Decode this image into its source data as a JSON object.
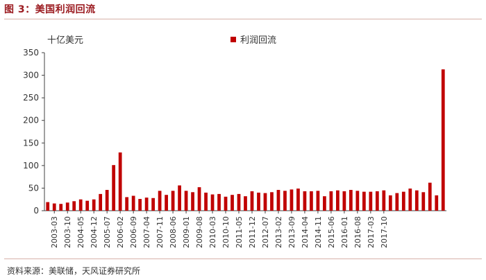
{
  "figure": {
    "title": "图 3：美国利润回流",
    "source": "资料来源：美联储，天风证券研究所"
  },
  "colors": {
    "bar": "#c00000",
    "title": "#9b1b20",
    "rule": "#d6b0a8",
    "axis": "#404040"
  },
  "chart_data": {
    "type": "bar",
    "title": "",
    "ylabel": "十亿美元",
    "xlabel": "",
    "ylim": [
      0,
      350
    ],
    "yticks": [
      0,
      50,
      100,
      150,
      200,
      250,
      300,
      350
    ],
    "grid": false,
    "legend_position": "top-center",
    "x_tick_labels": [
      "2003-03",
      "2003-10",
      "2004-05",
      "2004-12",
      "2005-07",
      "2006-02",
      "2006-09",
      "2007-04",
      "2007-11",
      "2008-06",
      "2009-01",
      "2009-08",
      "2010-03",
      "2010-10",
      "2011-05",
      "2011-12",
      "2012-07",
      "2013-02",
      "2013-09",
      "2014-04",
      "2014-11",
      "2015-06",
      "2016-01",
      "2016-08",
      "2017-03",
      "2017-10"
    ],
    "series": [
      {
        "name": "利润回流",
        "values": [
          19,
          16,
          15,
          18,
          21,
          25,
          22,
          25,
          37,
          46,
          101,
          129,
          30,
          33,
          26,
          29,
          28,
          44,
          35,
          44,
          56,
          44,
          41,
          52,
          40,
          36,
          37,
          31,
          35,
          37,
          32,
          43,
          40,
          39,
          41,
          46,
          44,
          47,
          49,
          43,
          43,
          44,
          32,
          43,
          45,
          43,
          46,
          44,
          42,
          42,
          43,
          45,
          34,
          39,
          42,
          49,
          45,
          41,
          62,
          34,
          313
        ]
      }
    ]
  }
}
